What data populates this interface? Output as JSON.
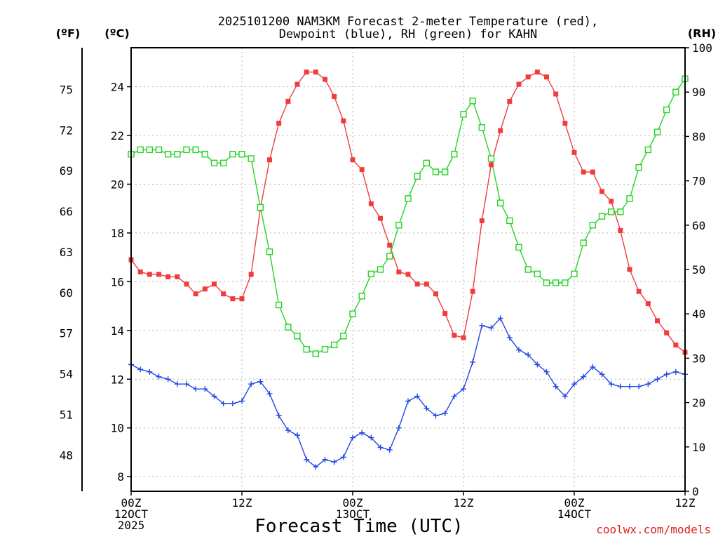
{
  "title_line1": "2025101200 NAM3KM Forecast 2-meter Temperature (red),",
  "title_line2": "Dewpoint (blue), RH (green) for KAHN",
  "xlabel": "Forecast Time (UTC)",
  "credit": "coolwx.com/models",
  "units": {
    "f": "(ºF)",
    "c": "(ºC)",
    "rh": "(RH)"
  },
  "chart_data": {
    "type": "line",
    "title": "2025101200 NAM3KM Forecast 2-meter Temperature (red), Dewpoint (blue), RH (green) for KAHN",
    "xlabel": "Forecast Time (UTC)",
    "x_unit": "forecast hour",
    "xlim": [
      0,
      60
    ],
    "ylabel_left": "(ºC)",
    "ylim_left": [
      7.4,
      25.6
    ],
    "ylabel_right": "(RH)",
    "ylim_right": [
      0,
      100
    ],
    "ylabel_far_left": "(ºF)",
    "grid": true,
    "x_ticks": [
      {
        "x": 0,
        "lines": [
          "00Z",
          "12OCT",
          "2025"
        ]
      },
      {
        "x": 12,
        "lines": [
          "12Z"
        ]
      },
      {
        "x": 24,
        "lines": [
          "00Z",
          "13OCT"
        ]
      },
      {
        "x": 36,
        "lines": [
          "12Z"
        ]
      },
      {
        "x": 48,
        "lines": [
          "00Z",
          "14OCT"
        ]
      },
      {
        "x": 60,
        "lines": [
          "12Z"
        ]
      }
    ],
    "c_ticks": [
      "8",
      "10",
      "12",
      "14",
      "16",
      "18",
      "20",
      "22",
      "24"
    ],
    "f_ticks": [
      "48",
      "51",
      "54",
      "57",
      "60",
      "63",
      "66",
      "69",
      "72",
      "75"
    ],
    "rh_ticks": [
      "0",
      "10",
      "20",
      "30",
      "40",
      "50",
      "60",
      "70",
      "80",
      "90",
      "100"
    ],
    "series": [
      {
        "name": "Temperature",
        "axis": "c",
        "color": "#f03c3c",
        "marker": "filled-square",
        "x": [
          0,
          1,
          2,
          3,
          4,
          5,
          6,
          7,
          8,
          9,
          10,
          11,
          12,
          13,
          14,
          15,
          16,
          17,
          18,
          19,
          20,
          21,
          22,
          23,
          24,
          25,
          26,
          27,
          28,
          29,
          30,
          31,
          32,
          33,
          34,
          35,
          36,
          37,
          38,
          39,
          40,
          41,
          42,
          43,
          44,
          45,
          46,
          47,
          48,
          49,
          50,
          51,
          52,
          53,
          54,
          55,
          56,
          57,
          58,
          59,
          60
        ],
        "values": [
          16.9,
          16.4,
          16.3,
          16.3,
          16.2,
          16.2,
          15.9,
          15.5,
          15.7,
          15.9,
          15.5,
          15.3,
          15.3,
          16.3,
          19.0,
          21.0,
          22.5,
          23.4,
          24.1,
          24.6,
          24.6,
          24.3,
          23.6,
          22.6,
          21.0,
          20.6,
          19.2,
          18.6,
          17.5,
          16.4,
          16.3,
          15.9,
          15.9,
          15.5,
          14.7,
          13.8,
          13.7,
          15.6,
          18.5,
          20.8,
          22.2,
          23.4,
          24.1,
          24.4,
          24.6,
          24.4,
          23.7,
          22.5,
          21.3,
          20.5,
          20.5,
          19.7,
          19.3,
          18.1,
          16.5,
          15.6,
          15.1,
          14.4,
          13.9,
          13.4,
          13.1
        ]
      },
      {
        "name": "Dewpoint",
        "axis": "c",
        "color": "#2346e6",
        "marker": "plus",
        "x": [
          0,
          1,
          2,
          3,
          4,
          5,
          6,
          7,
          8,
          9,
          10,
          11,
          12,
          13,
          14,
          15,
          16,
          17,
          18,
          19,
          20,
          21,
          22,
          23,
          24,
          25,
          26,
          27,
          28,
          29,
          30,
          31,
          32,
          33,
          34,
          35,
          36,
          37,
          38,
          39,
          40,
          41,
          42,
          43,
          44,
          45,
          46,
          47,
          48,
          49,
          50,
          51,
          52,
          53,
          54,
          55,
          56,
          57,
          58,
          59,
          60
        ],
        "values": [
          12.6,
          12.4,
          12.3,
          12.1,
          12.0,
          11.8,
          11.8,
          11.6,
          11.6,
          11.3,
          11.0,
          11.0,
          11.1,
          11.8,
          11.9,
          11.4,
          10.5,
          9.9,
          9.7,
          8.7,
          8.4,
          8.7,
          8.6,
          8.8,
          9.6,
          9.8,
          9.6,
          9.2,
          9.1,
          10.0,
          11.1,
          11.3,
          10.8,
          10.5,
          10.6,
          11.3,
          11.6,
          12.7,
          14.2,
          14.1,
          14.5,
          13.7,
          13.2,
          13.0,
          12.6,
          12.3,
          11.7,
          11.3,
          11.8,
          12.1,
          12.5,
          12.2,
          11.8,
          11.7,
          11.7,
          11.7,
          11.8,
          12.0,
          12.2,
          12.3,
          12.2
        ]
      },
      {
        "name": "RH",
        "axis": "rh",
        "color": "#23d323",
        "marker": "open-square",
        "x": [
          0,
          1,
          2,
          3,
          4,
          5,
          6,
          7,
          8,
          9,
          10,
          11,
          12,
          13,
          14,
          15,
          16,
          17,
          18,
          19,
          20,
          21,
          22,
          23,
          24,
          25,
          26,
          27,
          28,
          29,
          30,
          31,
          32,
          33,
          34,
          35,
          36,
          37,
          38,
          39,
          40,
          41,
          42,
          43,
          44,
          45,
          46,
          47,
          48,
          49,
          50,
          51,
          52,
          53,
          54,
          55,
          56,
          57,
          58,
          59,
          60
        ],
        "values": [
          76,
          77,
          77,
          77,
          76,
          76,
          77,
          77,
          76,
          74,
          74,
          76,
          76,
          75,
          64,
          54,
          42,
          37,
          35,
          32,
          31,
          32,
          33,
          35,
          40,
          44,
          49,
          50,
          53,
          60,
          66,
          71,
          74,
          72,
          72,
          76,
          85,
          88,
          82,
          75,
          65,
          61,
          55,
          50,
          49,
          47,
          47,
          47,
          49,
          56,
          60,
          62,
          63,
          63,
          66,
          73,
          77,
          81,
          86,
          90,
          93
        ]
      }
    ]
  }
}
